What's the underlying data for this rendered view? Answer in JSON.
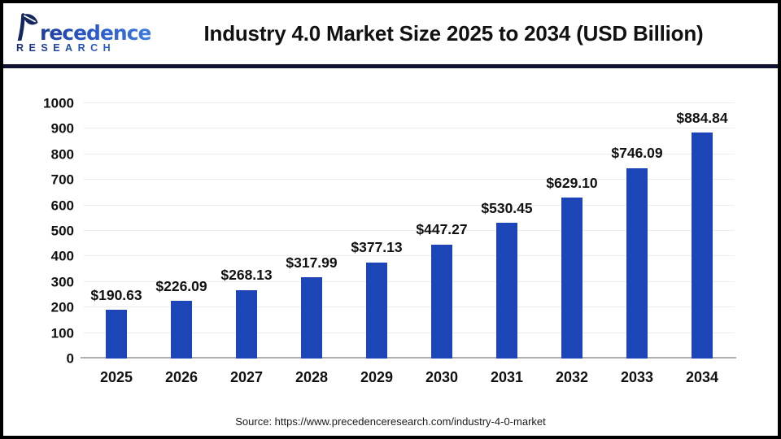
{
  "header": {
    "logo": {
      "name": "Precedence",
      "subtitle": "RESEARCH"
    },
    "title": "Industry 4.0 Market Size 2025 to 2034 (USD Billion)"
  },
  "chart_data": {
    "type": "bar",
    "title": "Industry 4.0 Market Size 2025 to 2034 (USD Billion)",
    "categories": [
      "2025",
      "2026",
      "2027",
      "2028",
      "2029",
      "2030",
      "2031",
      "2032",
      "2033",
      "2034"
    ],
    "values": [
      190.63,
      226.09,
      268.13,
      317.99,
      377.13,
      447.27,
      530.45,
      629.1,
      746.09,
      884.84
    ],
    "value_labels": [
      "$190.63",
      "$226.09",
      "$268.13",
      "$317.99",
      "$377.13",
      "$447.27",
      "$530.45",
      "$629.10",
      "$746.09",
      "$884.84"
    ],
    "xlabel": "",
    "ylabel": "",
    "ylim": [
      0,
      1000
    ],
    "ytick_step": 100,
    "ytick_labels": [
      "0",
      "100",
      "200",
      "300",
      "400",
      "500",
      "600",
      "700",
      "800",
      "900",
      "1000"
    ],
    "grid": true,
    "legend": "none",
    "bar_color": "#1C46B8"
  },
  "footer": {
    "source": "Source: https://www.precedenceresearch.com/industry-4-0-market"
  },
  "colors": {
    "bar": "#1C46B8",
    "divider": "#0E1130",
    "grid": "#ECECEC",
    "axis": "#AFAFAF",
    "logo_navy": "#1B2F72",
    "logo_blue": "#2B58C6"
  }
}
